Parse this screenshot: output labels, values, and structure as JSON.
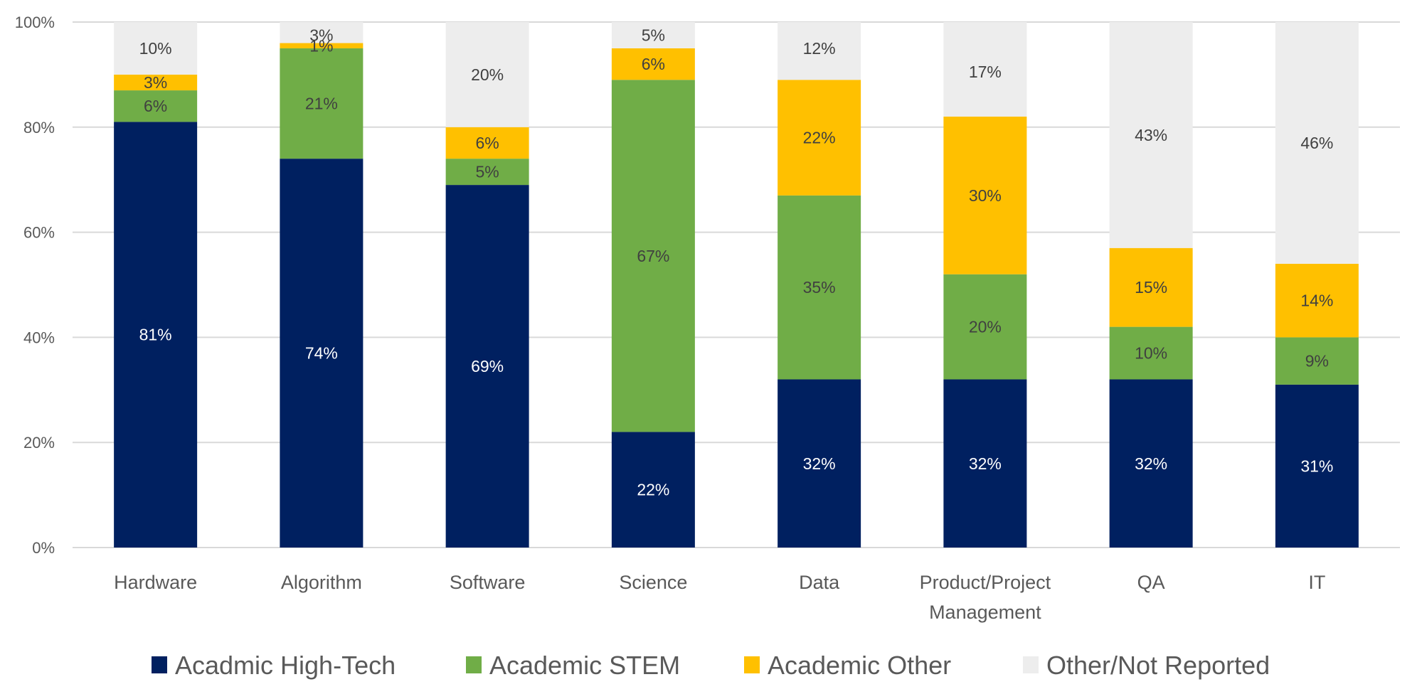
{
  "chart_data": {
    "type": "bar",
    "stacked": true,
    "title": "",
    "xlabel": "",
    "ylabel": "",
    "ylim": [
      0,
      100
    ],
    "y_ticks": [
      "0%",
      "20%",
      "40%",
      "60%",
      "80%",
      "100%"
    ],
    "y_tick_values": [
      0,
      20,
      40,
      60,
      80,
      100
    ],
    "grid": true,
    "legend_position": "bottom",
    "categories": [
      "Hardware",
      "Algorithm",
      "Software",
      "Science",
      "Data",
      "Product/Project Management",
      "QA",
      "IT"
    ],
    "category_label_lines": [
      [
        "Hardware"
      ],
      [
        "Algorithm"
      ],
      [
        "Software"
      ],
      [
        "Science"
      ],
      [
        "Data"
      ],
      [
        "Product/Project",
        "Management"
      ],
      [
        "QA"
      ],
      [
        "IT"
      ]
    ],
    "series": [
      {
        "name": "Acadmic High-Tech",
        "color": "#002060",
        "label_color": "#ffffff",
        "values": [
          81,
          74,
          69,
          22,
          32,
          32,
          32,
          31
        ]
      },
      {
        "name": "Academic STEM",
        "color": "#70AD47",
        "label_color": "#404040",
        "values": [
          6,
          21,
          5,
          67,
          35,
          20,
          10,
          9
        ]
      },
      {
        "name": "Academic Other",
        "color": "#FFC000",
        "label_color": "#404040",
        "values": [
          3,
          1,
          6,
          6,
          22,
          30,
          15,
          14
        ]
      },
      {
        "name": "Other/Not Reported",
        "color": "#EDEDED",
        "label_color": "#404040",
        "values": [
          10,
          3,
          20,
          5,
          12,
          17,
          43,
          46
        ]
      }
    ],
    "value_suffix": "%"
  }
}
